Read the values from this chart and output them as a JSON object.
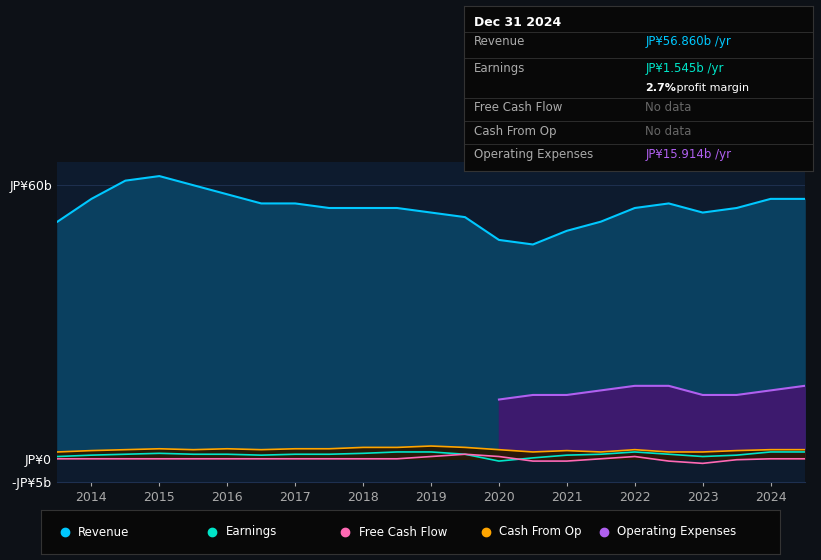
{
  "bg_color": "#0d1117",
  "plot_bg_color": "#0d1b2e",
  "grid_color": "#1e3050",
  "title_box": {
    "date": "Dec 31 2024",
    "revenue_label": "Revenue",
    "revenue_value": "JP¥56.860b /yr",
    "earnings_label": "Earnings",
    "earnings_value": "JP¥1.545b /yr",
    "margin_text": "2.7% profit margin",
    "fcf_label": "Free Cash Flow",
    "fcf_value": "No data",
    "cashop_label": "Cash From Op",
    "cashop_value": "No data",
    "opex_label": "Operating Expenses",
    "opex_value": "JP¥15.914b /yr"
  },
  "years": [
    2013.5,
    2014,
    2014.5,
    2015,
    2015.5,
    2016,
    2016.5,
    2017,
    2017.5,
    2018,
    2018.5,
    2019,
    2019.5,
    2020,
    2020.5,
    2021,
    2021.5,
    2022,
    2022.5,
    2023,
    2023.5,
    2024,
    2024.5
  ],
  "revenue": [
    52,
    57,
    61,
    62,
    60,
    58,
    56,
    56,
    55,
    55,
    55,
    54,
    53,
    48,
    47,
    50,
    52,
    55,
    56,
    54,
    55,
    57,
    57
  ],
  "earnings": [
    0.5,
    0.8,
    1.0,
    1.2,
    1.0,
    1.0,
    0.8,
    1.0,
    1.0,
    1.2,
    1.5,
    1.5,
    1.0,
    -0.5,
    0.2,
    0.8,
    1.0,
    1.5,
    1.0,
    0.5,
    0.8,
    1.5,
    1.5
  ],
  "free_cash_flow": [
    0.0,
    0.0,
    0.0,
    0.0,
    0.0,
    0.0,
    0.0,
    0.0,
    0.0,
    0.0,
    0.0,
    0.5,
    1.0,
    0.5,
    -0.5,
    -0.5,
    0.0,
    0.5,
    -0.5,
    -1.0,
    -0.2,
    0.0,
    0.0
  ],
  "cash_from_op": [
    1.5,
    1.8,
    2.0,
    2.2,
    2.0,
    2.2,
    2.0,
    2.2,
    2.2,
    2.5,
    2.5,
    2.8,
    2.5,
    2.0,
    1.5,
    1.8,
    1.5,
    2.0,
    1.5,
    1.5,
    1.8,
    2.0,
    2.0
  ],
  "operating_expenses": [
    0,
    0,
    0,
    0,
    0,
    0,
    0,
    0,
    0,
    0,
    0,
    0,
    0,
    13,
    14,
    14,
    15,
    16,
    16,
    14,
    14,
    15,
    16
  ],
  "revenue_color": "#00c8ff",
  "revenue_fill": "#0a4060",
  "earnings_color": "#00e5c8",
  "fcf_color": "#ff69b4",
  "cashop_color": "#ffa500",
  "opex_color": "#b060f0",
  "opex_fill": "#3d1a6e",
  "ylim": [
    -5,
    65
  ],
  "ytick_labels": [
    "JP¥60b",
    "JP¥0",
    "-JP¥5b"
  ],
  "ytick_values": [
    60,
    0,
    -5
  ],
  "xtick_years": [
    2014,
    2015,
    2016,
    2017,
    2018,
    2019,
    2020,
    2021,
    2022,
    2023,
    2024
  ],
  "legend_entries": [
    "Revenue",
    "Earnings",
    "Free Cash Flow",
    "Cash From Op",
    "Operating Expenses"
  ],
  "legend_colors": [
    "#00c8ff",
    "#00e5c8",
    "#ff69b4",
    "#ffa500",
    "#b060f0"
  ],
  "separator_color": "#333333",
  "nodata_color": "#666666",
  "label_color": "#aaaaaa"
}
